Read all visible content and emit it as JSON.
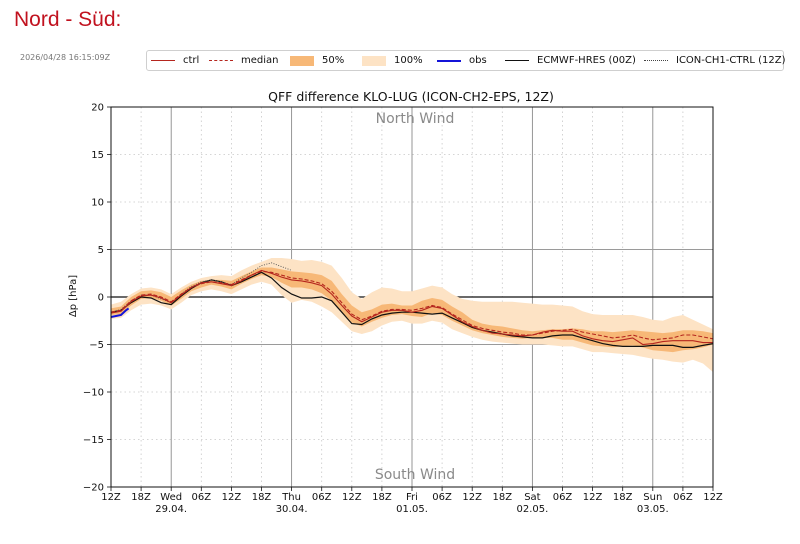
{
  "page": {
    "title": "Nord - Süd:",
    "timestamp": "2026/04/28 16:15:09Z"
  },
  "legend": [
    {
      "key": "ctrl",
      "label": "ctrl"
    },
    {
      "key": "median",
      "label": "median"
    },
    {
      "key": "p50",
      "label": "50%"
    },
    {
      "key": "p100",
      "label": "100%"
    },
    {
      "key": "obs",
      "label": "obs"
    },
    {
      "key": "ecmwf",
      "label": "ECMWF-HRES (00Z)"
    },
    {
      "key": "ch1",
      "label": "ICON-CH1-CTRL (12Z)"
    }
  ],
  "colors": {
    "title": "#c1121f",
    "ctrl": "#b5261e",
    "median": "#b5261e",
    "band50": "#f7b877",
    "band100": "#fde3c5",
    "obs": "#1414d8",
    "ecmwf": "#111111",
    "ch1": "#555555"
  },
  "chart_data": {
    "type": "line",
    "title": "QFF difference KLO-LUG (ICON-CH2-EPS, 12Z)",
    "xlabel": "",
    "ylabel": "Δp [hPa]",
    "x_unit": "hours since 28.04 12Z",
    "xlim": [
      0,
      120
    ],
    "ylim": [
      -20,
      20
    ],
    "yticks": [
      -20,
      -15,
      -10,
      -5,
      0,
      5,
      10,
      15,
      20
    ],
    "ytick_labels": [
      "−20",
      "−15",
      "−10",
      "−5",
      "0",
      "5",
      "10",
      "15",
      "20"
    ],
    "xticks": [
      {
        "x": 0,
        "label": "12Z"
      },
      {
        "x": 6,
        "label": "18Z"
      },
      {
        "x": 18,
        "label": "06Z"
      },
      {
        "x": 24,
        "label": "12Z"
      },
      {
        "x": 30,
        "label": "18Z"
      },
      {
        "x": 42,
        "label": "06Z"
      },
      {
        "x": 48,
        "label": "12Z"
      },
      {
        "x": 54,
        "label": "18Z"
      },
      {
        "x": 66,
        "label": "06Z"
      },
      {
        "x": 72,
        "label": "12Z"
      },
      {
        "x": 78,
        "label": "18Z"
      },
      {
        "x": 90,
        "label": "06Z"
      },
      {
        "x": 96,
        "label": "12Z"
      },
      {
        "x": 102,
        "label": "18Z"
      },
      {
        "x": 114,
        "label": "06Z"
      },
      {
        "x": 120,
        "label": "12Z"
      }
    ],
    "days": [
      {
        "x": 12,
        "name": "Wed",
        "date": "29.04."
      },
      {
        "x": 36,
        "name": "Thu",
        "date": "30.04."
      },
      {
        "x": 60,
        "name": "Fri",
        "date": "01.05."
      },
      {
        "x": 84,
        "name": "Sat",
        "date": "02.05."
      },
      {
        "x": 108,
        "name": "Sun",
        "date": "03.05."
      }
    ],
    "annotations": {
      "north": "North Wind",
      "south": "South Wind"
    },
    "reference_lines": [
      0,
      5,
      -5
    ],
    "grid": true,
    "x": [
      0,
      2,
      4,
      6,
      8,
      10,
      12,
      14,
      16,
      18,
      20,
      22,
      24,
      26,
      28,
      30,
      32,
      34,
      36,
      38,
      40,
      42,
      44,
      46,
      48,
      50,
      52,
      54,
      56,
      58,
      60,
      62,
      64,
      66,
      68,
      70,
      72,
      74,
      76,
      78,
      80,
      82,
      84,
      86,
      88,
      90,
      92,
      94,
      96,
      98,
      100,
      102,
      104,
      106,
      108,
      110,
      112,
      114,
      116,
      118,
      120
    ],
    "band100_upper": [
      -0.8,
      -0.5,
      0.3,
      0.9,
      1.0,
      0.8,
      0.3,
      1.0,
      1.6,
      2.0,
      2.2,
      2.3,
      2.2,
      2.8,
      3.3,
      3.7,
      4.1,
      4.1,
      4.0,
      3.8,
      3.9,
      3.7,
      3.3,
      2.0,
      0.5,
      -0.2,
      0.5,
      1.0,
      0.9,
      0.6,
      0.6,
      0.9,
      1.2,
      1.0,
      0.3,
      -0.2,
      -0.4,
      -0.5,
      -0.5,
      -0.5,
      -0.5,
      -0.6,
      -0.7,
      -0.8,
      -0.8,
      -0.9,
      -1.0,
      -1.5,
      -1.8,
      -1.9,
      -1.9,
      -1.9,
      -1.9,
      -2.1,
      -2.4,
      -2.5,
      -2.1,
      -1.9,
      -2.4,
      -2.9,
      -3.4
    ],
    "band100_lower": [
      -2.3,
      -2.2,
      -1.4,
      -0.8,
      -0.7,
      -0.9,
      -1.3,
      -0.6,
      0.2,
      0.6,
      0.8,
      0.6,
      0.3,
      0.8,
      1.3,
      1.6,
      1.3,
      0.2,
      -0.6,
      -0.3,
      -0.5,
      -1.0,
      -1.6,
      -2.6,
      -3.6,
      -3.9,
      -3.6,
      -3.0,
      -2.6,
      -2.5,
      -2.8,
      -2.8,
      -2.5,
      -2.7,
      -3.4,
      -3.8,
      -4.2,
      -4.5,
      -4.7,
      -4.8,
      -4.9,
      -5.0,
      -5.0,
      -5.0,
      -5.1,
      -5.2,
      -5.2,
      -5.5,
      -5.8,
      -5.8,
      -5.9,
      -6.0,
      -6.1,
      -6.3,
      -6.5,
      -6.6,
      -6.8,
      -6.9,
      -6.6,
      -7.0,
      -7.9
    ],
    "band50_upper": [
      -1.2,
      -1.0,
      0.0,
      0.6,
      0.7,
      0.5,
      0.0,
      0.7,
      1.3,
      1.7,
      1.8,
      1.8,
      1.7,
      2.2,
      2.7,
      3.1,
      3.1,
      2.9,
      2.7,
      2.6,
      2.5,
      2.3,
      1.7,
      0.3,
      -0.9,
      -1.6,
      -1.3,
      -0.8,
      -0.7,
      -0.9,
      -0.9,
      -0.4,
      -0.1,
      -0.3,
      -1.0,
      -1.6,
      -2.4,
      -2.8,
      -3.0,
      -3.1,
      -3.3,
      -3.5,
      -3.6,
      -3.5,
      -3.4,
      -3.4,
      -3.3,
      -3.4,
      -3.6,
      -3.6,
      -3.7,
      -3.6,
      -3.5,
      -3.6,
      -3.7,
      -3.8,
      -3.7,
      -3.5,
      -3.5,
      -3.6,
      -3.8
    ],
    "band50_lower": [
      -1.9,
      -1.8,
      -0.9,
      -0.2,
      -0.1,
      -0.4,
      -0.9,
      -0.2,
      0.6,
      1.0,
      1.3,
      1.1,
      0.8,
      1.4,
      1.9,
      2.3,
      2.1,
      1.5,
      1.0,
      1.0,
      0.8,
      0.4,
      -0.4,
      -1.6,
      -2.7,
      -3.1,
      -2.6,
      -2.2,
      -1.9,
      -1.8,
      -2.0,
      -2.1,
      -1.7,
      -1.9,
      -2.5,
      -3.0,
      -3.5,
      -3.8,
      -4.0,
      -4.2,
      -4.3,
      -4.4,
      -4.3,
      -4.3,
      -4.3,
      -4.5,
      -4.5,
      -4.8,
      -5.1,
      -5.2,
      -5.3,
      -5.2,
      -5.1,
      -5.3,
      -5.6,
      -5.7,
      -5.8,
      -5.6,
      -5.5,
      -5.3,
      -5.0
    ],
    "median": [
      -1.6,
      -1.4,
      -0.4,
      0.2,
      0.3,
      0.0,
      -0.5,
      0.3,
      1.0,
      1.4,
      1.6,
      1.5,
      1.3,
      1.8,
      2.3,
      2.7,
      2.6,
      2.3,
      2.0,
      1.9,
      1.7,
      1.4,
      0.6,
      -0.6,
      -1.8,
      -2.4,
      -2.0,
      -1.5,
      -1.3,
      -1.3,
      -1.4,
      -1.2,
      -0.9,
      -1.1,
      -1.8,
      -2.4,
      -3.0,
      -3.3,
      -3.5,
      -3.7,
      -3.8,
      -4.0,
      -4.0,
      -3.8,
      -3.6,
      -3.5,
      -3.4,
      -3.7,
      -3.9,
      -4.1,
      -4.3,
      -4.2,
      -4.0,
      -4.3,
      -4.5,
      -4.4,
      -4.3,
      -4.0,
      -4.0,
      -4.2,
      -4.4
    ],
    "ctrl": [
      -1.7,
      -1.5,
      -0.5,
      0.1,
      0.2,
      -0.1,
      -0.6,
      0.2,
      1.0,
      1.5,
      1.6,
      1.4,
      1.2,
      1.7,
      2.3,
      2.8,
      2.5,
      2.1,
      1.8,
      1.7,
      1.5,
      1.2,
      0.3,
      -0.9,
      -2.0,
      -2.6,
      -2.1,
      -1.6,
      -1.4,
      -1.4,
      -1.6,
      -1.4,
      -1.0,
      -1.2,
      -1.9,
      -2.6,
      -3.1,
      -3.5,
      -3.8,
      -3.9,
      -4.0,
      -4.1,
      -4.0,
      -3.7,
      -3.5,
      -3.6,
      -3.6,
      -4.1,
      -4.4,
      -4.6,
      -4.7,
      -4.5,
      -4.3,
      -5.0,
      -4.9,
      -4.7,
      -4.6,
      -4.6,
      -4.6,
      -4.8,
      -4.8
    ],
    "ecmwf": [
      -1.6,
      -1.4,
      -0.6,
      0.0,
      -0.1,
      -0.6,
      -0.8,
      0.1,
      0.9,
      1.5,
      1.8,
      1.6,
      1.2,
      1.6,
      2.1,
      2.6,
      2.0,
      1.0,
      0.3,
      -0.1,
      -0.1,
      0.0,
      -0.4,
      -1.6,
      -2.8,
      -2.9,
      -2.3,
      -1.9,
      -1.7,
      -1.6,
      -1.6,
      -1.7,
      -1.8,
      -1.7,
      -2.2,
      -2.7,
      -3.2,
      -3.5,
      -3.7,
      -3.9,
      -4.1,
      -4.2,
      -4.3,
      -4.3,
      -4.1,
      -4.0,
      -4.0,
      -4.3,
      -4.6,
      -4.9,
      -5.1,
      -5.2,
      -5.2,
      -5.2,
      -5.1,
      -5.1,
      -5.1,
      -5.3,
      -5.3,
      -5.1,
      -4.9
    ],
    "ch1": {
      "x": [
        0,
        2,
        4,
        6,
        8,
        10,
        12,
        14,
        16,
        18,
        20,
        22,
        24,
        26,
        28,
        30,
        32,
        34,
        36
      ],
      "values": [
        -1.6,
        -1.3,
        -0.4,
        0.2,
        0.2,
        -0.2,
        -0.6,
        0.3,
        1.1,
        1.6,
        1.8,
        1.6,
        1.3,
        2.0,
        2.6,
        3.3,
        3.6,
        3.2,
        2.8
      ]
    },
    "obs": {
      "x": [
        0,
        1,
        2,
        3,
        3.5
      ],
      "values": [
        -2.1,
        -2.0,
        -1.9,
        -1.4,
        -1.2
      ]
    }
  }
}
